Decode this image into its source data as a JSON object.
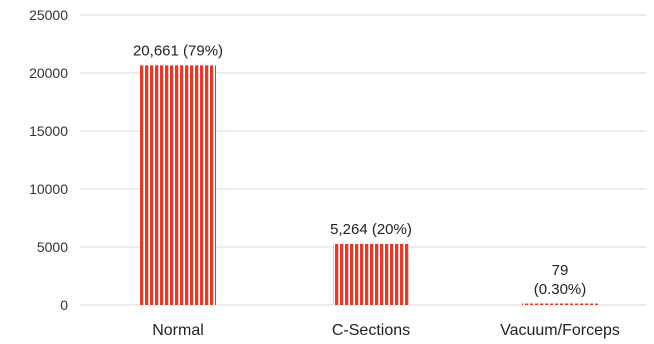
{
  "chart_data": {
    "type": "bar",
    "title": "",
    "xlabel": "",
    "ylabel": "",
    "categories": [
      "Normal",
      "C-Sections",
      "Vacuum/Forceps"
    ],
    "values": [
      20661,
      5264,
      79
    ],
    "data_labels": [
      [
        "20,661 (79%)"
      ],
      [
        "5,264 (20%)"
      ],
      [
        "79",
        "(0.30%)"
      ]
    ],
    "ylim": [
      0,
      25000
    ],
    "yticks": [
      0,
      5000,
      10000,
      15000,
      20000,
      25000
    ],
    "ytick_labels": [
      "0",
      "5000",
      "10000",
      "15000",
      "20000",
      "25000"
    ],
    "grid": true,
    "legend": "none",
    "bar_color": "#e03c2c",
    "bar_pattern": "vertical white stripes"
  }
}
